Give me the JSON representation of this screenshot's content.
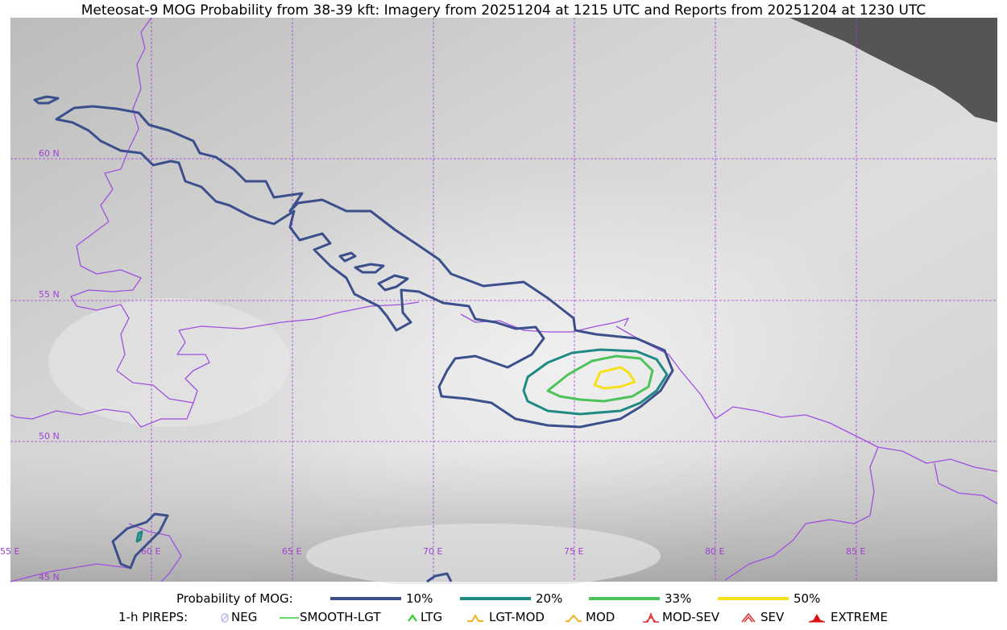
{
  "title": "Meteosat-9 MOG Probability from 38-39 kft: Imagery from 20251204 at 1215 UTC and Reports from 20251204 at 1230 UTC",
  "map": {
    "graticule_color": "#a040d0",
    "border_color": "#a050e0",
    "lat_labels": [
      "60 N",
      "55 N",
      "50 N",
      "45 N"
    ],
    "lon_labels": [
      "55 E",
      "60 E",
      "65 E",
      "70 E",
      "75 E",
      "80 E",
      "85 E"
    ]
  },
  "probability_legend": {
    "label": "Probability of MOG:",
    "levels": [
      {
        "text": "10%",
        "color": "#3b4f8c"
      },
      {
        "text": "20%",
        "color": "#1f8a84"
      },
      {
        "text": "33%",
        "color": "#4cc35a"
      },
      {
        "text": "50%",
        "color": "#f5e11a"
      }
    ]
  },
  "pirep_legend": {
    "label": "1-h PIREPS:",
    "items": [
      {
        "text": "NEG",
        "icon": "neg-icon",
        "color": "#b8b8f0"
      },
      {
        "text": "SMOOTH-LGT",
        "icon": "line-icon",
        "color": "#33cc33"
      },
      {
        "text": "LTG",
        "icon": "chevron-icon",
        "color": "#22cc22"
      },
      {
        "text": "LGT-MOD",
        "icon": "hat-icon",
        "color": "#f0b020"
      },
      {
        "text": "MOD",
        "icon": "chevron-icon",
        "color": "#f0b020"
      },
      {
        "text": "MOD-SEV",
        "icon": "hat-icon",
        "color": "#e03030"
      },
      {
        "text": "SEV",
        "icon": "chevron-icon",
        "color": "#e03030"
      },
      {
        "text": "EXTREME",
        "icon": "filled-hat-icon",
        "color": "#e01010"
      }
    ]
  }
}
